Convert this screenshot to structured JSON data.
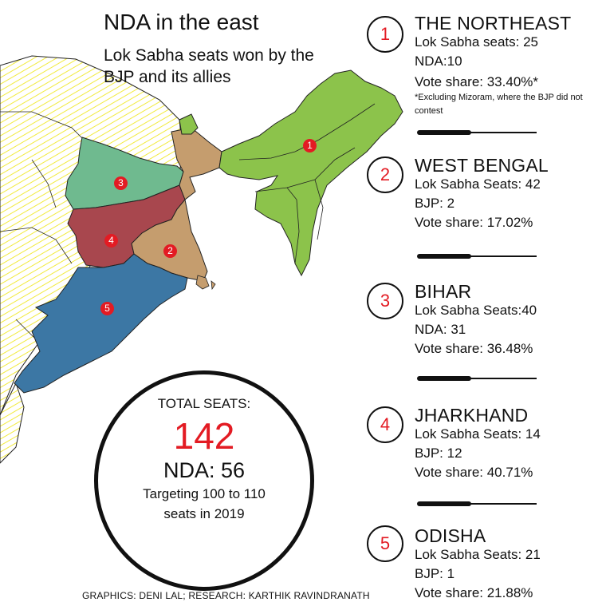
{
  "title": "NDA in the east",
  "subtitle": "Lok Sabha seats won by the BJP and its allies",
  "map": {
    "markers": [
      "1",
      "2",
      "3",
      "4",
      "5"
    ],
    "colors": {
      "northeast": "#8cc34b",
      "west_bengal": "#c59d6e",
      "bihar": "#6fba8f",
      "jharkhand": "#a8474e",
      "odisha": "#3c77a4",
      "hatch": "#f2ea3d",
      "badge": "#e31b23",
      "other_fill": "#ffffff"
    }
  },
  "regions": [
    {
      "num": "1",
      "name": "THE NORTHEAST",
      "lines": [
        "Lok Sabha seats: 25",
        "NDA:10",
        "Vote share: 33.40%*"
      ],
      "footnote": "*Excluding Mizoram, where the BJP did not contest"
    },
    {
      "num": "2",
      "name": "WEST BENGAL",
      "lines": [
        "Lok Sabha Seats: 42",
        "BJP: 2",
        "Vote share: 17.02%"
      ]
    },
    {
      "num": "3",
      "name": "BIHAR",
      "lines": [
        "Lok Sabha Seats:40",
        "NDA: 31",
        "Vote share: 36.48%"
      ]
    },
    {
      "num": "4",
      "name": "JHARKHAND",
      "lines": [
        "Lok Sabha Seats: 14",
        "BJP: 12",
        "Vote share: 40.71%"
      ]
    },
    {
      "num": "5",
      "name": "ODISHA",
      "lines": [
        "Lok Sabha Seats: 21",
        "BJP: 1",
        "Vote share: 21.88%"
      ]
    }
  ],
  "total": {
    "label": "TOTAL SEATS:",
    "value": "142",
    "nda": "NDA: 56",
    "target_line1": "Targeting 100 to 110",
    "target_line2": "seats in 2019"
  },
  "credits": "GRAPHICS: DENI LAL; RESEARCH: KARTHIK RAVINDRANATH"
}
